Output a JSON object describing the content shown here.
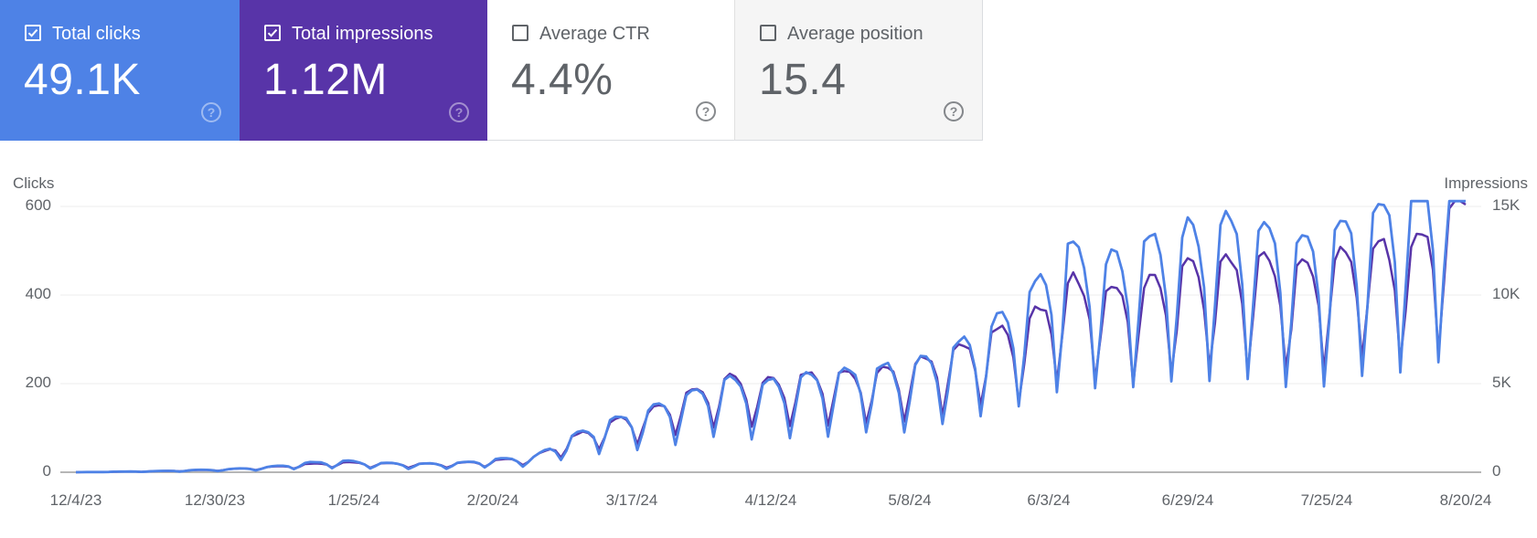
{
  "cards": [
    {
      "label": "Total clicks",
      "value": "49.1K",
      "checked": true,
      "color": "#4e82e6"
    },
    {
      "label": "Total impressions",
      "value": "1.12M",
      "checked": true,
      "color": "#5834a8"
    },
    {
      "label": "Average CTR",
      "value": "4.4%",
      "checked": false,
      "color": "#ffffff"
    },
    {
      "label": "Average position",
      "value": "15.4",
      "checked": false,
      "color": "#f5f5f5"
    }
  ],
  "help_glyph": "?",
  "chart_data": {
    "type": "line",
    "title": "",
    "ylabel_left": "Clicks",
    "ylabel_right": "Impressions",
    "y_left_ticks": [
      "0",
      "200",
      "400",
      "600"
    ],
    "y_right_ticks": [
      "0",
      "5K",
      "10K",
      "15K"
    ],
    "ylim_left": [
      0,
      600
    ],
    "ylim_right": [
      0,
      15000
    ],
    "x_ticks": [
      "12/4/23",
      "12/30/23",
      "1/25/24",
      "2/20/24",
      "3/17/24",
      "4/12/24",
      "5/8/24",
      "6/3/24",
      "6/29/24",
      "7/25/24",
      "8/20/24"
    ],
    "grid": true,
    "x_start": "12/4/23",
    "x_end": "8/23/24",
    "series": [
      {
        "name": "Clicks",
        "axis": "left",
        "color": "#4e82e6",
        "weekly_approx": [
          0,
          1,
          2,
          4,
          6,
          10,
          18,
          22,
          18,
          16,
          18,
          25,
          30,
          70,
          100,
          120,
          150,
          180,
          170,
          185,
          190,
          200,
          210,
          240,
          280,
          340,
          430,
          400,
          440,
          460,
          480,
          470,
          440,
          460,
          500,
          540,
          580
        ]
      },
      {
        "name": "Impressions",
        "axis": "right",
        "color": "#5834a8",
        "weekly_approx": [
          0,
          25,
          50,
          100,
          150,
          250,
          400,
          500,
          450,
          420,
          450,
          600,
          750,
          1750,
          2500,
          3000,
          3900,
          4700,
          4500,
          4800,
          4900,
          5000,
          5400,
          6000,
          6800,
          7500,
          9500,
          9000,
          9300,
          10000,
          10400,
          10500,
          10000,
          10600,
          11200,
          11300,
          13100
        ]
      }
    ]
  }
}
